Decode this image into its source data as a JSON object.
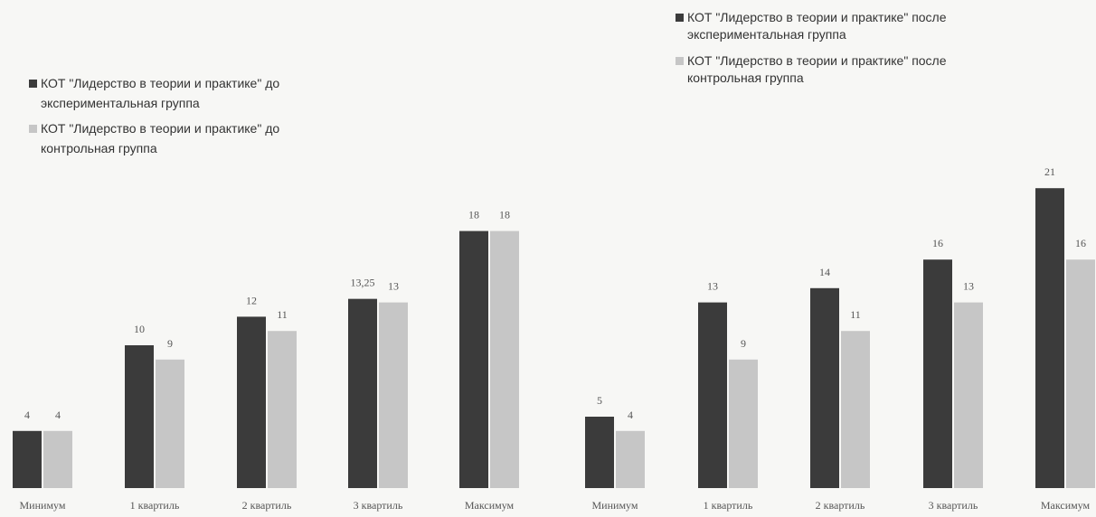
{
  "chart_data": [
    {
      "type": "bar",
      "categories": [
        "Минимум",
        "1 квартиль",
        "2 квартиль",
        "3 квартиль",
        "Максимум"
      ],
      "series": [
        {
          "name": "КОТ \"Лидерство в теории и практике\" до экспериментальная группа",
          "legend_lines": [
            "КОТ \"Лидерство в теории и практике\" до",
            "экспериментальная группа"
          ],
          "values": [
            4,
            10,
            12,
            13.25,
            18
          ],
          "value_labels": [
            "4",
            "10",
            "12",
            "13,25",
            "18"
          ],
          "color": "#3b3b3b"
        },
        {
          "name": "КОТ \"Лидерство в теории и практике\" до контрольная группа",
          "legend_lines": [
            "КОТ \"Лидерство в теории и практике\" до",
            "контрольная группа"
          ],
          "values": [
            4,
            9,
            11,
            13,
            18
          ],
          "value_labels": [
            "4",
            "9",
            "11",
            "13",
            "18"
          ],
          "color": "#c6c6c6"
        }
      ],
      "legend_position": "top-left",
      "grid": false
    },
    {
      "type": "bar",
      "categories": [
        "Минимум",
        "1 квартиль",
        "2 квартиль",
        "3 квартиль",
        "Максимум"
      ],
      "series": [
        {
          "name": "КОТ \"Лидерство в теории и практике\"  после экспериментальная группа",
          "legend_lines": [
            "КОТ \"Лидерство в теории и практике\"  после",
            "экспериментальная группа"
          ],
          "values": [
            5,
            13,
            14,
            16,
            21
          ],
          "value_labels": [
            "5",
            "13",
            "14",
            "16",
            "21"
          ],
          "color": "#3b3b3b"
        },
        {
          "name": "КОТ \"Лидерство в теории и практике\"  после контрольная группа",
          "legend_lines": [
            "КОТ \"Лидерство в теории и практике\"  после",
            "контрольная группа"
          ],
          "values": [
            4,
            9,
            11,
            13,
            16
          ],
          "value_labels": [
            "4",
            "9",
            "11",
            "13",
            "16"
          ],
          "color": "#c6c6c6"
        }
      ],
      "legend_position": "top-right",
      "grid": false
    }
  ]
}
